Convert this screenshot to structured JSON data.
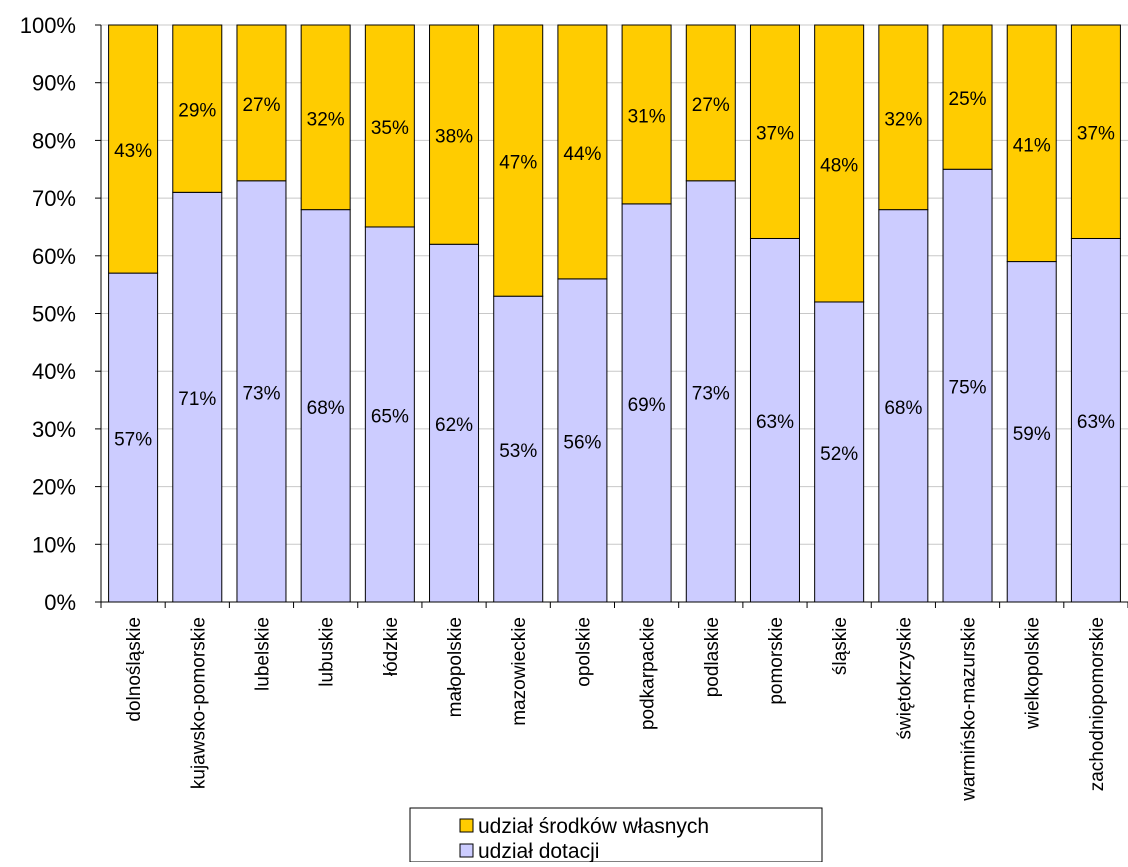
{
  "chart_data": {
    "type": "bar",
    "stacked": true,
    "categories": [
      "dolnośląskie",
      "kujawsko-pomorskie",
      "lubelskie",
      "lubuskie",
      "łódzkie",
      "małopolskie",
      "mazowieckie",
      "opolskie",
      "podkarpackie",
      "podlaskie",
      "pomorskie",
      "śląskie",
      "świętokrzyskie",
      "warmińsko-mazurskie",
      "wielkopolskie",
      "zachodniopomorskie"
    ],
    "series": [
      {
        "name": "udział dotacji",
        "color": "#ccccff",
        "values": [
          57,
          71,
          73,
          68,
          65,
          62,
          53,
          56,
          69,
          73,
          63,
          52,
          68,
          75,
          59,
          63
        ],
        "labels": [
          "57%",
          "71%",
          "73%",
          "68%",
          "65%",
          "62%",
          "53%",
          "56%",
          "69%",
          "73%",
          "63%",
          "52%",
          "68%",
          "75%",
          "59%",
          "63%"
        ]
      },
      {
        "name": "udział środków własnych",
        "color": "#ffcc00",
        "values": [
          43,
          29,
          27,
          32,
          35,
          38,
          47,
          44,
          31,
          27,
          37,
          48,
          32,
          25,
          41,
          37
        ],
        "labels": [
          "43%",
          "29%",
          "27%",
          "32%",
          "35%",
          "38%",
          "47%",
          "44%",
          "31%",
          "27%",
          "37%",
          "48%",
          "32%",
          "25%",
          "41%",
          "37%"
        ]
      }
    ],
    "ylim": [
      0,
      100
    ],
    "yticks": [
      0,
      10,
      20,
      30,
      40,
      50,
      60,
      70,
      80,
      90,
      100
    ],
    "ytick_labels": [
      "0%",
      "10%",
      "20%",
      "30%",
      "40%",
      "50%",
      "60%",
      "70%",
      "80%",
      "90%",
      "100%"
    ],
    "grid": true,
    "legend": {
      "position": "bottom",
      "order": [
        "udział środków własnych",
        "udział dotacji"
      ]
    }
  }
}
